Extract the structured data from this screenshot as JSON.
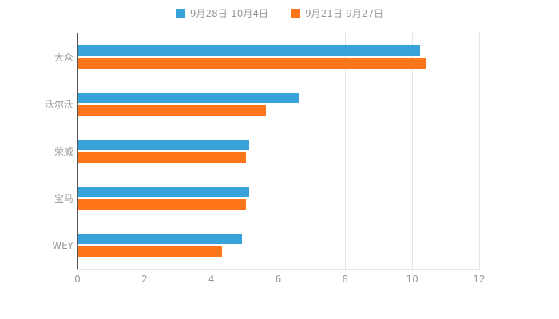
{
  "legend": {
    "series1_label": "9月28日-10月4日",
    "series2_label": "9月21日-9月27日"
  },
  "colors": {
    "series1": "#38a2db",
    "series2": "#ff7519",
    "grid": "#e6e6e6",
    "axis": "#555555",
    "text": "#999999"
  },
  "chart_data": {
    "type": "bar",
    "orientation": "horizontal",
    "title": "",
    "categories": [
      "大众",
      "沃尔沃",
      "荣威",
      "宝马",
      "WEY"
    ],
    "series": [
      {
        "name": "9月28日-10月4日",
        "color": "#38a2db",
        "values": [
          10.2,
          6.6,
          5.1,
          5.1,
          4.9
        ]
      },
      {
        "name": "9月21日-9月27日",
        "color": "#ff7519",
        "values": [
          10.4,
          5.6,
          5.0,
          5.0,
          4.3
        ]
      }
    ],
    "xlabel": "",
    "ylabel": "",
    "xlim": [
      0,
      12
    ],
    "x_ticks": [
      0,
      2,
      4,
      6,
      8,
      10,
      12
    ],
    "grid": true,
    "legend_position": "top"
  }
}
